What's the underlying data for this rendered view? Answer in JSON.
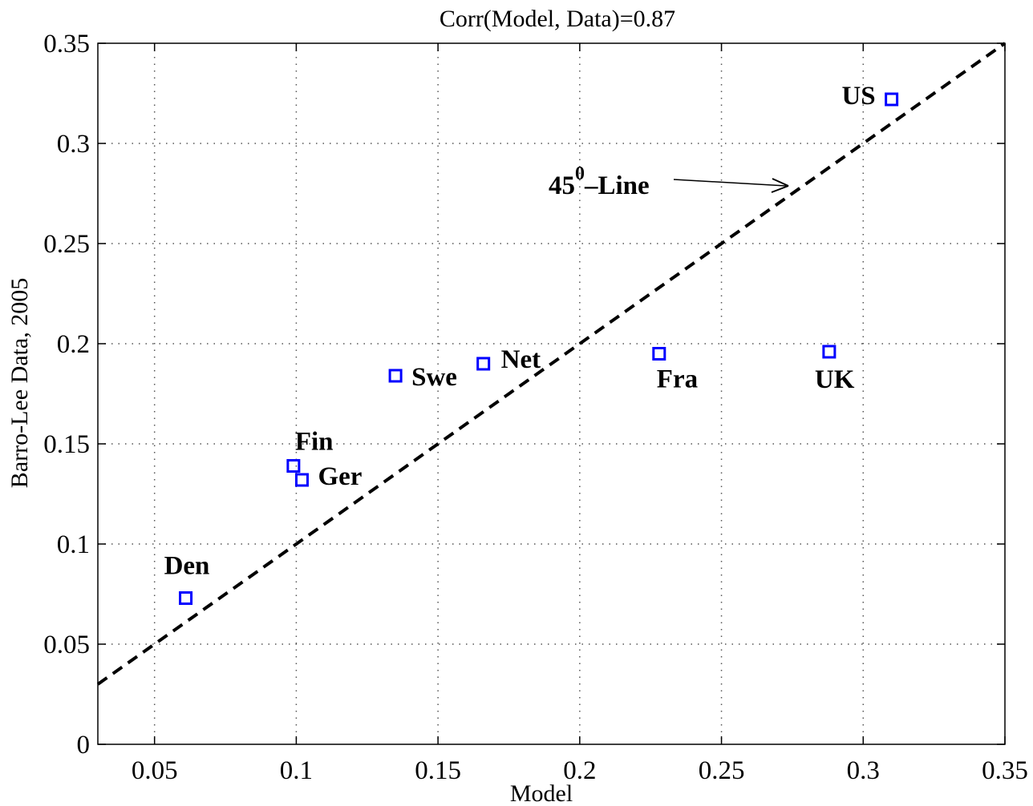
{
  "chart_data": {
    "type": "scatter",
    "title": "Corr(Model, Data)=0.87",
    "xlabel": "Model",
    "ylabel": "Barro-Lee Data, 2005",
    "xlim": [
      0.03,
      0.35
    ],
    "ylim": [
      0,
      0.35
    ],
    "xticks": [
      "0.05",
      "0.1",
      "0.15",
      "0.2",
      "0.25",
      "0.3",
      "0.35"
    ],
    "yticks": [
      "0",
      "0.05",
      "0.1",
      "0.15",
      "0.2",
      "0.25",
      "0.3",
      "0.35"
    ],
    "grid": true,
    "marker": "square",
    "marker_color": "#0000ff",
    "points": [
      {
        "label": "Den",
        "x": 0.061,
        "y": 0.073
      },
      {
        "label": "Fin",
        "x": 0.099,
        "y": 0.139
      },
      {
        "label": "Ger",
        "x": 0.102,
        "y": 0.132
      },
      {
        "label": "Swe",
        "x": 0.135,
        "y": 0.184
      },
      {
        "label": "Net",
        "x": 0.166,
        "y": 0.19
      },
      {
        "label": "Fra",
        "x": 0.228,
        "y": 0.195
      },
      {
        "label": "UK",
        "x": 0.288,
        "y": 0.196
      },
      {
        "label": "US",
        "x": 0.31,
        "y": 0.322
      }
    ],
    "reference_line": {
      "type": "45-degree",
      "style": "dashed",
      "color": "#000000"
    },
    "annotation": {
      "base": "45",
      "superscript": "0",
      "rest": "–Line"
    }
  }
}
